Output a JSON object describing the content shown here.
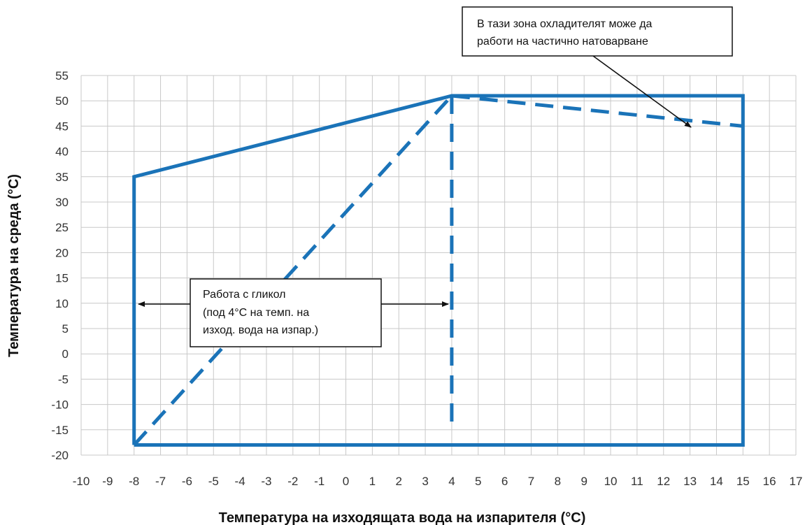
{
  "chart_data": {
    "type": "line",
    "xlabel": "Температура на изходящата вода на изпарителя (°C)",
    "ylabel": "Температура на среда (°C)",
    "xlim": [
      -10,
      17
    ],
    "ylim": [
      -20,
      55
    ],
    "x_ticks": [
      -10,
      -9,
      -8,
      -7,
      -6,
      -5,
      -4,
      -3,
      -2,
      -1,
      0,
      1,
      2,
      3,
      4,
      5,
      6,
      7,
      8,
      9,
      10,
      11,
      12,
      13,
      14,
      15,
      16,
      17
    ],
    "y_ticks": [
      55,
      50,
      45,
      40,
      35,
      30,
      25,
      20,
      15,
      10,
      5,
      0,
      -5,
      -10,
      -15,
      -20
    ],
    "grid": true,
    "color": "#1a73b8",
    "series": [
      {
        "style": "solid",
        "points": [
          [
            -8,
            -18
          ],
          [
            -8,
            35
          ],
          [
            4,
            51
          ],
          [
            15,
            51
          ],
          [
            15,
            -18
          ],
          [
            -8,
            -18
          ]
        ]
      },
      {
        "style": "dashed",
        "points": [
          [
            -8,
            -18
          ],
          [
            4,
            51
          ]
        ]
      },
      {
        "style": "dashed",
        "points": [
          [
            4,
            51
          ],
          [
            4,
            -15
          ]
        ]
      },
      {
        "style": "dashed",
        "points": [
          [
            4,
            51
          ],
          [
            15,
            45
          ]
        ]
      }
    ],
    "annotations": [
      {
        "lines": [
          "В тази зона охладителят може да",
          "работи на частично натоварване"
        ]
      },
      {
        "lines": [
          "Работа с гликол",
          "(под  4°C  на  темп.  на",
          "изход. вода на изпар.)"
        ]
      }
    ]
  }
}
